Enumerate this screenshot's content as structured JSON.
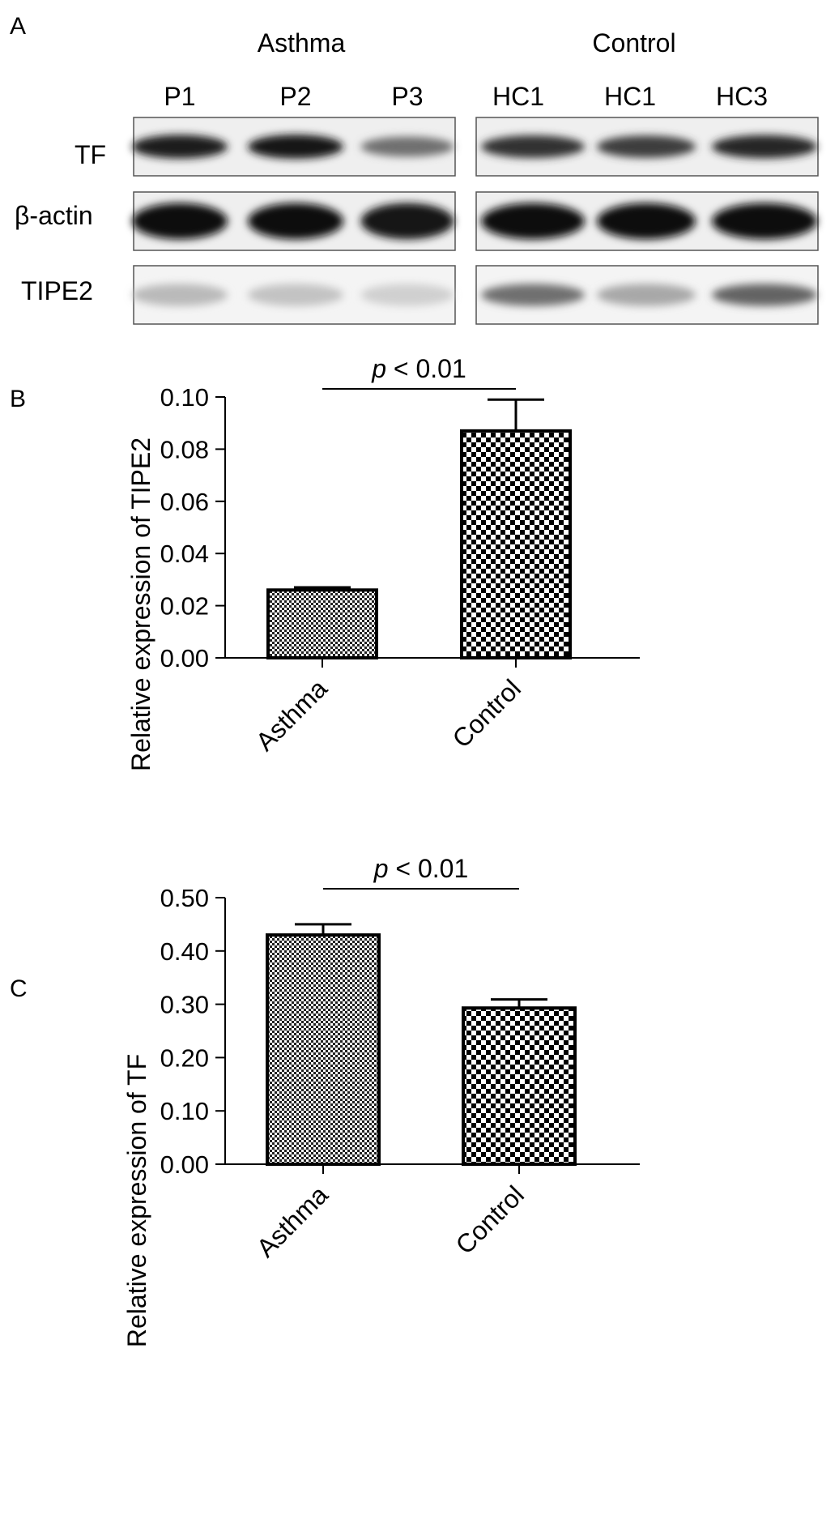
{
  "blot": {
    "panel_label": "A",
    "group_labels": [
      "Asthma",
      "Control"
    ],
    "lane_labels": [
      "P1",
      "P2",
      "P3",
      "HC1",
      "HC1",
      "HC3"
    ],
    "row_labels": [
      "TF",
      "β-actin",
      "TIPE2"
    ],
    "band_intensity": {
      "TF": [
        0.92,
        0.95,
        0.55,
        0.82,
        0.78,
        0.88
      ],
      "β-actin": [
        1.0,
        0.97,
        0.96,
        1.0,
        1.0,
        1.0
      ],
      "TIPE2": [
        0.22,
        0.18,
        0.12,
        0.55,
        0.3,
        0.6
      ]
    }
  },
  "chart_data": [
    {
      "panel_label": "B",
      "type": "bar",
      "categories": [
        "Asthma",
        "Control"
      ],
      "values": [
        0.026,
        0.087
      ],
      "errors": [
        0.001,
        0.012
      ],
      "ylabel": "Relative expression of TIPE2",
      "ylim": [
        0,
        0.1
      ],
      "yticks": [
        "0.00",
        "0.02",
        "0.04",
        "0.06",
        "0.08",
        "0.10"
      ],
      "significance": {
        "italic": "p",
        "text": " < 0.01"
      },
      "fill_patterns": [
        "fine-checker",
        "coarse-checker"
      ]
    },
    {
      "panel_label": "C",
      "type": "bar",
      "categories": [
        "Asthma",
        "Control"
      ],
      "values": [
        0.43,
        0.293
      ],
      "errors": [
        0.02,
        0.016
      ],
      "ylabel": "Relative expression of TF",
      "ylim": [
        0,
        0.5
      ],
      "yticks": [
        "0.00",
        "0.10",
        "0.20",
        "0.30",
        "0.40",
        "0.50"
      ],
      "significance": {
        "italic": "p",
        "text": " < 0.01"
      },
      "fill_patterns": [
        "fine-checker",
        "coarse-checker"
      ]
    }
  ]
}
